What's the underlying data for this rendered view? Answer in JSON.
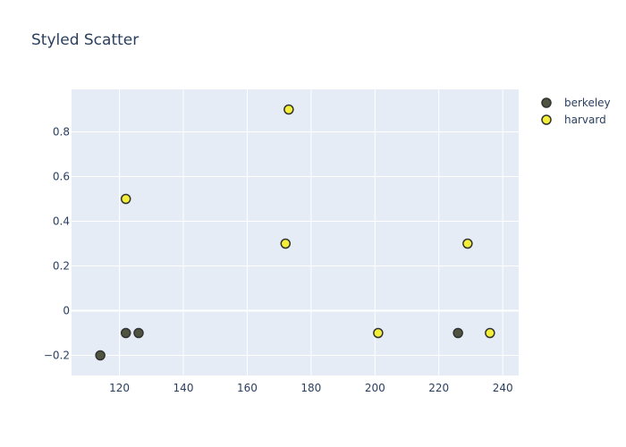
{
  "chart_data": {
    "type": "scatter",
    "title": "Styled Scatter",
    "xlabel": "",
    "ylabel": "",
    "xlim": [
      105,
      245
    ],
    "ylim": [
      -0.29,
      0.99
    ],
    "x_ticks": [
      120,
      140,
      160,
      180,
      200,
      220,
      240
    ],
    "x_tick_labels": [
      "120",
      "140",
      "160",
      "180",
      "200",
      "220",
      "240"
    ],
    "y_ticks": [
      -0.2,
      0,
      0.2,
      0.4,
      0.6,
      0.8
    ],
    "y_tick_labels": [
      "−0.2",
      "0",
      "0.2",
      "0.4",
      "0.6",
      "0.8"
    ],
    "grid": true,
    "legend_position": "top-right",
    "series": [
      {
        "name": "berkeley",
        "color": "#4f5440",
        "edge_color": "#333333",
        "points": [
          {
            "x": 114,
            "y": -0.2
          },
          {
            "x": 122,
            "y": -0.1
          },
          {
            "x": 126,
            "y": -0.1
          },
          {
            "x": 226,
            "y": -0.1
          }
        ]
      },
      {
        "name": "harvard",
        "color": "#f3ee37",
        "edge_color": "#333333",
        "points": [
          {
            "x": 122,
            "y": 0.5
          },
          {
            "x": 172,
            "y": 0.3
          },
          {
            "x": 173,
            "y": 0.9
          },
          {
            "x": 201,
            "y": -0.1
          },
          {
            "x": 229,
            "y": 0.3
          },
          {
            "x": 236,
            "y": -0.1
          }
        ]
      }
    ]
  }
}
